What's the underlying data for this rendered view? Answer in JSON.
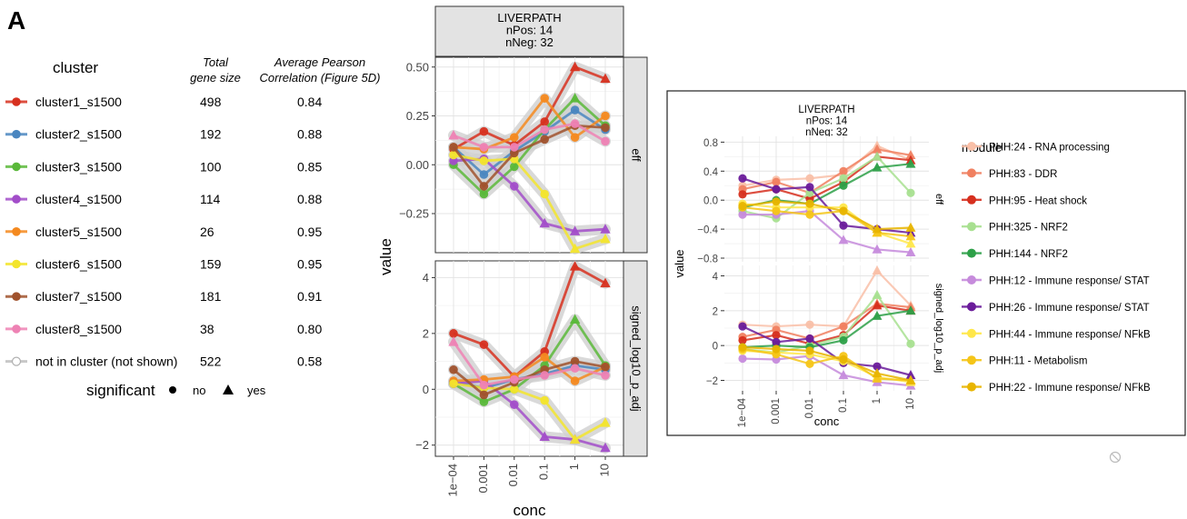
{
  "panel_label": "A",
  "legend_table": {
    "col_cluster": "cluster",
    "col_size_line1": "Total",
    "col_size_line2": "gene size",
    "col_corr_line1": "Average Pearson",
    "col_corr_line2": "Correlation (Figure 5D)",
    "rows": [
      {
        "name": "cluster1_s1500",
        "size": "498",
        "corr": "0.84",
        "color": "#d7301f"
      },
      {
        "name": "cluster2_s1500",
        "size": "192",
        "corr": "0.88",
        "color": "#4a86c0"
      },
      {
        "name": "cluster3_s1500",
        "size": "100",
        "corr": "0.85",
        "color": "#5ab83a"
      },
      {
        "name": "cluster4_s1500",
        "size": "114",
        "corr": "0.88",
        "color": "#a24dc9"
      },
      {
        "name": "cluster5_s1500",
        "size": "26",
        "corr": "0.95",
        "color": "#f4891f"
      },
      {
        "name": "cluster6_s1500",
        "size": "159",
        "corr": "0.95",
        "color": "#f3e52c"
      },
      {
        "name": "cluster7_s1500",
        "size": "181",
        "corr": "0.91",
        "color": "#a0522d"
      },
      {
        "name": "cluster8_s1500",
        "size": "38",
        "corr": "0.80",
        "color": "#ee82b4"
      },
      {
        "name": "not in cluster (not shown)",
        "size": "522",
        "corr": "0.58",
        "color": "#b0b0b0"
      }
    ],
    "significant_label": "significant",
    "sig_no": "no",
    "sig_yes": "yes"
  },
  "chart_data": [
    {
      "type": "line",
      "strip_lines": [
        "LIVERPATH",
        "nPos:  14",
        "nNeg:  32"
      ],
      "xlabel": "conc",
      "ylabel": "value",
      "x": [
        "1e−04",
        "0.001",
        "0.01",
        "0.1",
        "1",
        "10"
      ],
      "facets": [
        {
          "label": "eff",
          "ylim": [
            -0.45,
            0.55
          ],
          "ticks": [
            0.5,
            0.25,
            0.0,
            -0.25
          ],
          "tick_labels": [
            "0.50",
            "0.25",
            "0.00",
            "−0.25"
          ]
        },
        {
          "label": "signed_log10_p_adj",
          "ylim": [
            -2.4,
            4.6
          ],
          "ticks": [
            4,
            2,
            0,
            -2
          ],
          "tick_labels": [
            "4",
            "2",
            "0",
            "−2"
          ]
        }
      ],
      "series": [
        {
          "color": "#d7301f",
          "eff": [
            0.08,
            0.17,
            0.1,
            0.22,
            0.5,
            0.44
          ],
          "sig": [
            2.0,
            1.6,
            0.45,
            1.35,
            4.4,
            3.8
          ],
          "sig_flags": [
            0,
            0,
            0,
            0,
            1,
            1
          ]
        },
        {
          "color": "#4a86c0",
          "eff": [
            0.09,
            -0.05,
            0.07,
            0.17,
            0.28,
            0.18
          ],
          "sig": [
            0.25,
            0.05,
            0.35,
            0.55,
            0.85,
            0.7
          ],
          "sig_flags": [
            0,
            0,
            0,
            0,
            0,
            0
          ]
        },
        {
          "color": "#5ab83a",
          "eff": [
            0.0,
            -0.15,
            -0.01,
            0.18,
            0.34,
            0.2
          ],
          "sig": [
            0.2,
            -0.45,
            0.0,
            0.85,
            2.5,
            0.85
          ],
          "sig_flags": [
            0,
            0,
            0,
            0,
            1,
            0
          ]
        },
        {
          "color": "#a24dc9",
          "eff": [
            0.02,
            0.03,
            -0.11,
            -0.3,
            -0.34,
            -0.33
          ],
          "sig": [
            0.2,
            0.3,
            -0.55,
            -1.7,
            -1.8,
            -2.1
          ],
          "sig_flags": [
            0,
            0,
            0,
            1,
            1,
            1
          ]
        },
        {
          "color": "#f4891f",
          "eff": [
            0.09,
            0.08,
            0.14,
            0.34,
            0.14,
            0.25
          ],
          "sig": [
            0.3,
            0.35,
            0.45,
            1.15,
            0.3,
            0.8
          ],
          "sig_flags": [
            0,
            0,
            0,
            0,
            0,
            0
          ]
        },
        {
          "color": "#f3e52c",
          "eff": [
            0.05,
            0.02,
            0.03,
            -0.15,
            -0.43,
            -0.38
          ],
          "sig": [
            0.2,
            0.05,
            0.0,
            -0.4,
            -1.8,
            -1.2
          ],
          "sig_flags": [
            0,
            0,
            0,
            0,
            1,
            1
          ]
        },
        {
          "color": "#a0522d",
          "eff": [
            0.09,
            -0.11,
            0.06,
            0.13,
            0.2,
            0.19
          ],
          "sig": [
            0.7,
            -0.2,
            0.25,
            0.7,
            1.0,
            0.8
          ],
          "sig_flags": [
            0,
            0,
            0,
            0,
            0,
            0
          ]
        },
        {
          "color": "#ee82b4",
          "eff": [
            0.15,
            0.09,
            0.09,
            0.18,
            0.21,
            0.12
          ],
          "sig": [
            1.7,
            0.15,
            0.35,
            0.5,
            0.75,
            0.5
          ],
          "sig_flags": [
            1,
            0,
            0,
            0,
            0,
            0
          ]
        }
      ]
    },
    {
      "type": "line",
      "strip_lines": [
        "LIVERPATH",
        "nPos:  14",
        "nNeg:  32"
      ],
      "xlabel": "conc",
      "ylabel": "value",
      "x": [
        "1e−04",
        "0.001",
        "0.01",
        "0.1",
        "1",
        "10"
      ],
      "legend_title": "module",
      "facets": [
        {
          "label": "eff",
          "ylim": [
            -0.85,
            0.88
          ],
          "ticks": [
            0.8,
            0.4,
            0.0,
            -0.4,
            -0.8
          ],
          "tick_labels": [
            "0.8",
            "0.4",
            "0.0",
            "−0.4",
            "−0.8"
          ]
        },
        {
          "label": "signed_log10_p_adj",
          "ylim": [
            -2.6,
            4.6
          ],
          "ticks": [
            4,
            2,
            0,
            -2
          ],
          "tick_labels": [
            "4",
            "2",
            "0",
            "−2"
          ]
        }
      ],
      "series": [
        {
          "name": "PHH:24 - RNA processing",
          "color": "#f9c0a8",
          "eff": [
            0.2,
            0.28,
            0.3,
            0.35,
            0.75,
            0.55
          ],
          "sig": [
            1.2,
            1.1,
            1.2,
            1.1,
            4.3,
            2.3
          ],
          "sig_flags": [
            0,
            0,
            0,
            0,
            1,
            1
          ]
        },
        {
          "name": "PHH:83 - DDR",
          "color": "#f08060",
          "eff": [
            0.15,
            0.25,
            0.1,
            0.4,
            0.7,
            0.62
          ],
          "sig": [
            0.5,
            0.9,
            0.4,
            1.1,
            2.4,
            2.2
          ],
          "sig_flags": [
            0,
            0,
            0,
            0,
            1,
            1
          ]
        },
        {
          "name": "PHH:95 - Heat shock",
          "color": "#d62f1e",
          "eff": [
            0.08,
            0.15,
            0.02,
            0.25,
            0.6,
            0.55
          ],
          "sig": [
            0.3,
            0.6,
            0.1,
            0.6,
            2.3,
            2.0
          ],
          "sig_flags": [
            0,
            0,
            0,
            0,
            1,
            1
          ]
        },
        {
          "name": "PHH:325 - NRF2",
          "color": "#a8e090",
          "eff": [
            -0.15,
            -0.25,
            0.1,
            0.3,
            0.6,
            0.1
          ],
          "sig": [
            -0.2,
            -0.4,
            0.0,
            0.5,
            2.9,
            0.1
          ],
          "sig_flags": [
            0,
            0,
            0,
            0,
            1,
            0
          ]
        },
        {
          "name": "PHH:144 - NRF2",
          "color": "#2da048",
          "eff": [
            -0.1,
            0.0,
            -0.05,
            0.2,
            0.45,
            0.5
          ],
          "sig": [
            -0.1,
            0.0,
            -0.1,
            0.3,
            1.7,
            2.0
          ],
          "sig_flags": [
            0,
            0,
            0,
            0,
            1,
            1
          ]
        },
        {
          "name": "PHH:12 - Immune response/ STAT",
          "color": "#c68bdc",
          "eff": [
            -0.2,
            -0.2,
            -0.15,
            -0.55,
            -0.68,
            -0.72
          ],
          "sig": [
            -0.75,
            -0.8,
            -0.6,
            -1.7,
            -2.1,
            -2.3
          ],
          "sig_flags": [
            0,
            0,
            0,
            1,
            1,
            1
          ]
        },
        {
          "name": "PHH:26 - Immune response/ STAT",
          "color": "#6a1b9a",
          "eff": [
            0.3,
            0.15,
            0.18,
            -0.35,
            -0.4,
            -0.45
          ],
          "sig": [
            1.1,
            0.2,
            0.4,
            -1.0,
            -1.2,
            -1.7
          ],
          "sig_flags": [
            0,
            0,
            0,
            0,
            0,
            1
          ]
        },
        {
          "name": "PHH:44 - Immune response/ NFkB",
          "color": "#ffe74a",
          "eff": [
            -0.05,
            -0.1,
            -0.1,
            -0.1,
            -0.45,
            -0.6
          ],
          "sig": [
            -0.3,
            -0.4,
            -0.5,
            -0.9,
            -1.8,
            -2.1
          ],
          "sig_flags": [
            0,
            0,
            0,
            0,
            1,
            1
          ]
        },
        {
          "name": "PHH:11 - Metabolism",
          "color": "#f5c518",
          "eff": [
            -0.1,
            -0.15,
            -0.2,
            -0.15,
            -0.45,
            -0.5
          ],
          "sig": [
            -0.2,
            -0.5,
            -1.05,
            -0.6,
            -1.9,
            -2.0
          ],
          "sig_flags": [
            0,
            0,
            0,
            0,
            1,
            1
          ]
        },
        {
          "name": "PHH:22 - Immune response/ NFkB",
          "color": "#e8b500",
          "eff": [
            -0.08,
            -0.02,
            -0.05,
            -0.15,
            -0.4,
            -0.38
          ],
          "sig": [
            -0.1,
            -0.2,
            -0.3,
            -0.8,
            -1.6,
            -2.0
          ],
          "sig_flags": [
            0,
            0,
            0,
            0,
            1,
            1
          ]
        }
      ]
    }
  ]
}
